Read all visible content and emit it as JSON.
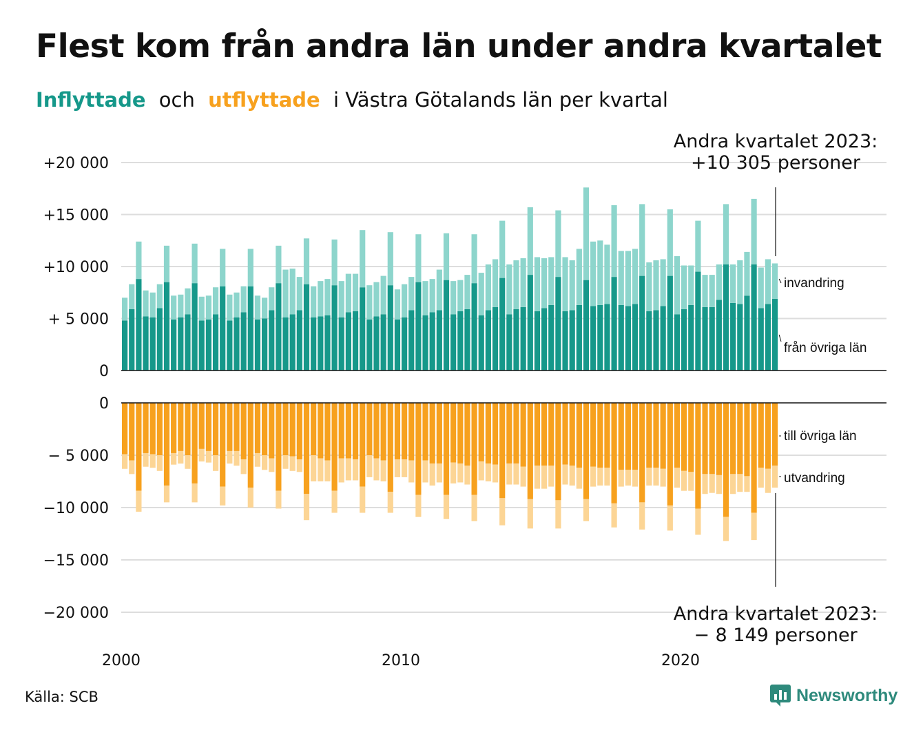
{
  "title": "Flest kom från andra län under andra kvartalet",
  "subtitle": {
    "part1": "Inflyttade",
    "part2": "och",
    "part3": "utflyttade",
    "part4": "i Västra Götalands län per kvartal"
  },
  "source": "Källa: SCB",
  "logo_text": "Newsworthy",
  "annotation_top": [
    "Andra kvartalet 2023:",
    "+10 305 personer"
  ],
  "annotation_bottom": [
    "Andra kvartalet 2023:",
    "− 8 149 personer"
  ],
  "colors": {
    "in_domestic": "#16988a",
    "in_immigration": "#8dd5cc",
    "out_domestic": "#f7a11e",
    "out_emigration": "#fcd595",
    "grid": "#dddddd",
    "brand": "#2e8a7c"
  },
  "chart_data": [
    {
      "type": "bar",
      "stacked": true,
      "title": "Inflyttade",
      "y_ticks": [
        "0",
        "+ 5 000",
        "+10 000",
        "+15 000",
        "+20 000"
      ],
      "y_tick_values": [
        0,
        5000,
        10000,
        15000,
        20000
      ],
      "ylim": [
        0,
        20000
      ],
      "x_ticks": [
        "2000",
        "2010",
        "2020"
      ],
      "x_start_year": 2000,
      "quarters": 94,
      "series": [
        {
          "name": "från övriga län",
          "values": [
            4800,
            5900,
            8800,
            5200,
            5100,
            6000,
            8500,
            4900,
            5100,
            5400,
            8400,
            4800,
            4900,
            5400,
            8100,
            4800,
            5100,
            5600,
            8100,
            4900,
            5000,
            5800,
            8400,
            5100,
            5400,
            5800,
            8300,
            5100,
            5200,
            5300,
            8200,
            5100,
            5600,
            5700,
            8000,
            4900,
            5200,
            5400,
            8200,
            4900,
            5100,
            5800,
            8500,
            5300,
            5600,
            5800,
            8700,
            5400,
            5700,
            5900,
            8400,
            5300,
            5800,
            6100,
            8900,
            5400,
            5900,
            6100,
            9200,
            5700,
            6000,
            6300,
            9000,
            5700,
            5800,
            6300,
            8700,
            6200,
            6300,
            6400,
            9000,
            6300,
            6200,
            6400,
            9100,
            5700,
            5800,
            6200,
            9100,
            5400,
            5900,
            6300,
            9500,
            6100,
            6100,
            6800,
            10200,
            6500,
            6400,
            7200,
            10200,
            6000,
            6400,
            6900
          ]
        },
        {
          "name": "invandring",
          "values": [
            2200,
            2400,
            3600,
            2500,
            2400,
            2300,
            3500,
            2300,
            2200,
            2500,
            3800,
            2300,
            2300,
            2600,
            3600,
            2500,
            2400,
            2500,
            3600,
            2300,
            2000,
            2200,
            3600,
            4600,
            4400,
            3200,
            4400,
            3000,
            3400,
            3500,
            4400,
            3500,
            3700,
            3600,
            5500,
            3300,
            3300,
            3700,
            5100,
            2900,
            3200,
            3200,
            4600,
            3300,
            3200,
            3900,
            4500,
            3200,
            3000,
            3300,
            4700,
            4100,
            4400,
            4600,
            5500,
            4800,
            4700,
            4700,
            6500,
            5200,
            4800,
            4600,
            6400,
            5200,
            4800,
            5400,
            8900,
            6200,
            6200,
            5700,
            6900,
            5200,
            5300,
            5300,
            6900,
            4700,
            4800,
            4500,
            6400,
            5600,
            4200,
            3800,
            4900,
            3100,
            3100,
            3400,
            5800,
            3700,
            4200,
            4200,
            6300,
            3900,
            4300,
            3400
          ]
        }
      ]
    },
    {
      "type": "bar",
      "stacked": true,
      "title": "Utflyttade",
      "y_ticks": [
        "0",
        "− 5 000",
        "−10 000",
        "−15 000",
        "−20 000"
      ],
      "y_tick_values": [
        0,
        -5000,
        -10000,
        -15000,
        -20000
      ],
      "ylim": [
        -20000,
        0
      ],
      "x_ticks": [
        "2000",
        "2010",
        "2020"
      ],
      "x_start_year": 2000,
      "quarters": 94,
      "series": [
        {
          "name": "till övriga län",
          "values": [
            -4900,
            -5500,
            -8400,
            -4800,
            -4900,
            -5000,
            -7900,
            -4800,
            -4600,
            -5000,
            -7700,
            -4400,
            -4600,
            -5000,
            -8000,
            -4600,
            -4600,
            -5400,
            -8100,
            -4800,
            -5000,
            -5300,
            -8400,
            -5000,
            -5100,
            -5400,
            -8700,
            -5000,
            -5300,
            -5500,
            -8400,
            -5300,
            -5300,
            -5400,
            -8000,
            -5000,
            -5300,
            -5500,
            -8500,
            -5400,
            -5400,
            -5500,
            -8800,
            -5500,
            -5800,
            -5800,
            -8800,
            -5700,
            -5800,
            -6000,
            -8800,
            -5600,
            -5800,
            -5900,
            -9100,
            -5800,
            -5800,
            -6100,
            -9200,
            -6000,
            -6000,
            -6000,
            -9300,
            -5900,
            -6000,
            -6200,
            -9200,
            -6100,
            -6200,
            -6200,
            -9600,
            -6400,
            -6400,
            -6400,
            -9500,
            -6200,
            -6200,
            -6300,
            -9800,
            -6200,
            -6500,
            -6600,
            -10100,
            -6800,
            -6800,
            -6900,
            -10900,
            -6800,
            -6800,
            -7000,
            -10500,
            -6200,
            -6300,
            -6000
          ]
        },
        {
          "name": "utvandring",
          "values": [
            -1400,
            -1300,
            -2000,
            -1300,
            -1300,
            -1500,
            -1600,
            -1100,
            -1200,
            -1300,
            -1800,
            -1200,
            -1100,
            -1500,
            -1800,
            -1200,
            -1400,
            -1400,
            -1900,
            -1300,
            -1400,
            -1300,
            -1700,
            -1300,
            -1400,
            -1200,
            -2500,
            -2500,
            -2200,
            -2000,
            -2100,
            -2300,
            -2100,
            -2000,
            -2500,
            -2100,
            -2100,
            -2000,
            -2000,
            -1700,
            -1700,
            -2100,
            -2100,
            -2100,
            -2100,
            -1800,
            -2300,
            -2000,
            -1800,
            -1800,
            -2500,
            -1800,
            -1700,
            -1700,
            -2600,
            -2000,
            -2000,
            -1900,
            -2800,
            -2200,
            -2200,
            -2000,
            -2700,
            -1900,
            -1900,
            -2000,
            -2100,
            -1900,
            -1700,
            -1700,
            -2300,
            -1600,
            -1500,
            -1600,
            -2600,
            -1700,
            -1700,
            -1700,
            -2400,
            -1900,
            -1900,
            -1800,
            -2500,
            -1900,
            -1800,
            -1800,
            -2300,
            -1900,
            -1700,
            -1500,
            -2600,
            -1900,
            -2300,
            -2100
          ]
        }
      ]
    }
  ],
  "series_labels": {
    "top_upper": "invandring",
    "top_lower": "från övriga län",
    "bottom_upper": "till övriga län",
    "bottom_lower": "utvandring"
  }
}
